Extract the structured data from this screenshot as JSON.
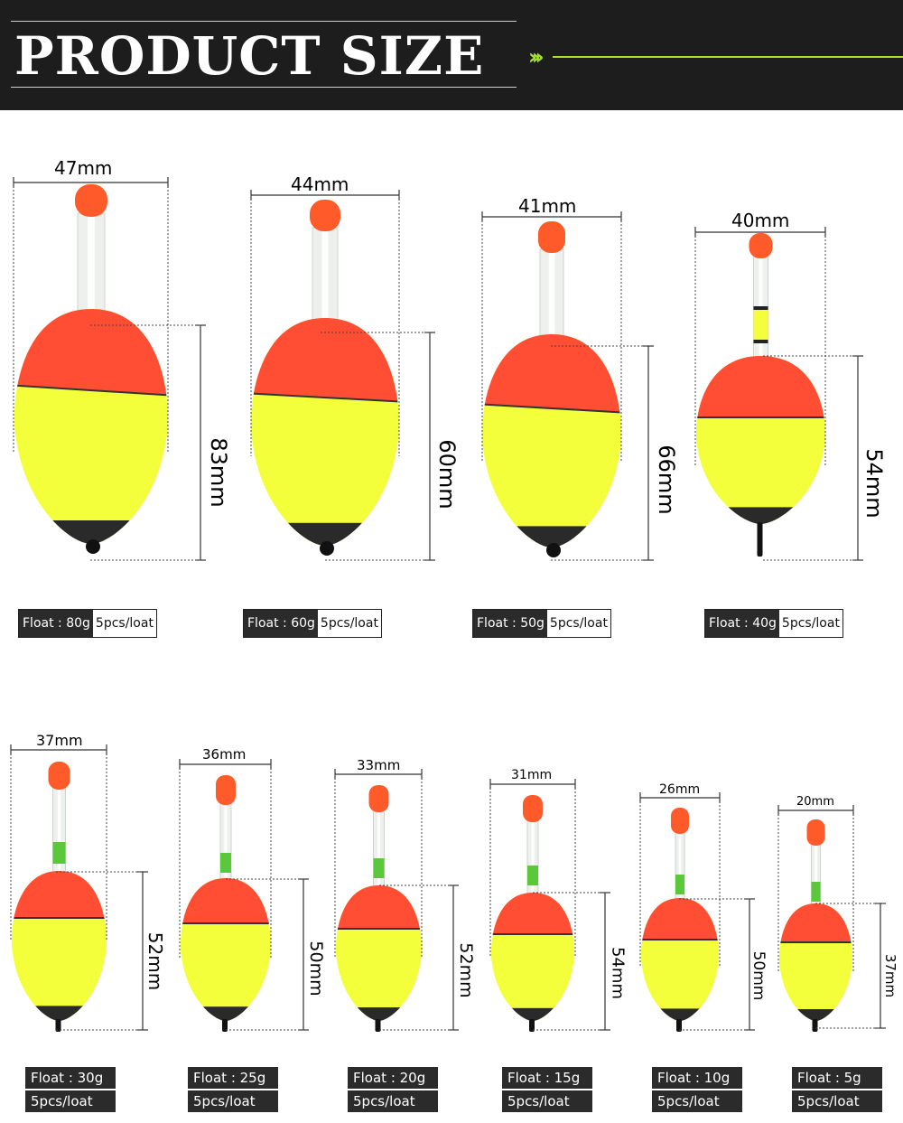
{
  "header": {
    "title": "PRODUCT SIZE",
    "chevrons": "›››"
  },
  "colors": {
    "red": "#ff4e33",
    "yellow": "#f2ff3a",
    "tip": "#ff5a2a",
    "dark": "#2a2a2a",
    "green_accent": "#a6e22e"
  },
  "row1": [
    {
      "width_label": "47mm",
      "height_label": "83mm",
      "weight": "Float : 80g",
      "qty": "5pcs/loat"
    },
    {
      "width_label": "44mm",
      "height_label": "60mm",
      "weight": "Float : 60g",
      "qty": "5pcs/loat"
    },
    {
      "width_label": "41mm",
      "height_label": "66mm",
      "weight": "Float : 50g",
      "qty": "5pcs/loat"
    },
    {
      "width_label": "40mm",
      "height_label": "54mm",
      "weight": "Float : 40g",
      "qty": "5pcs/loat"
    }
  ],
  "row2": [
    {
      "width_label": "37mm",
      "height_label": "52mm",
      "weight": "Float : 30g",
      "qty": "5pcs/loat"
    },
    {
      "width_label": "36mm",
      "height_label": "50mm",
      "weight": "Float : 25g",
      "qty": "5pcs/loat"
    },
    {
      "width_label": "33mm",
      "height_label": "52mm",
      "weight": "Float : 20g",
      "qty": "5pcs/loat"
    },
    {
      "width_label": "31mm",
      "height_label": "54mm",
      "weight": "Float : 15g",
      "qty": "5pcs/loat"
    },
    {
      "width_label": "26mm",
      "height_label": "50mm",
      "weight": "Float : 10g",
      "qty": "5pcs/loat"
    },
    {
      "width_label": "20mm",
      "height_label": "37mm",
      "weight": "Float : 5g",
      "qty": "5pcs/loat"
    }
  ]
}
